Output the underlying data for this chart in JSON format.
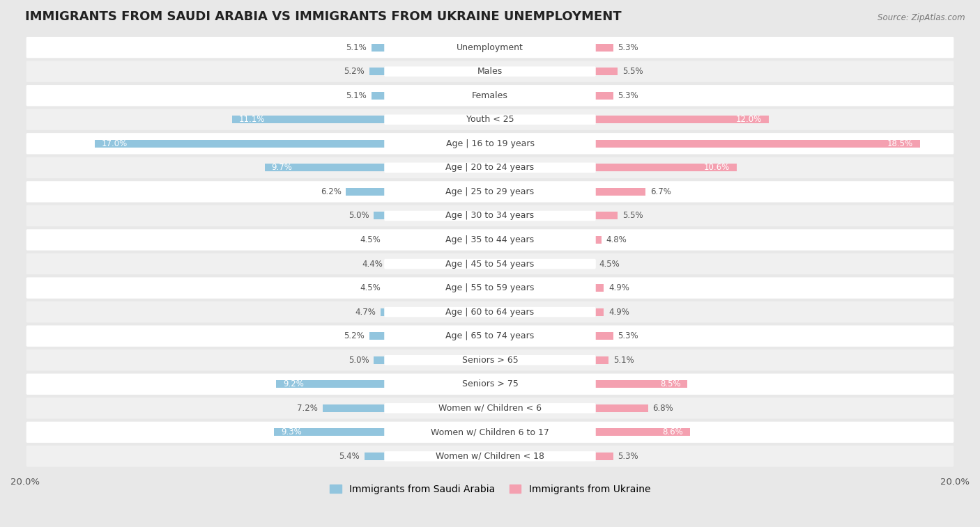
{
  "title": "IMMIGRANTS FROM SAUDI ARABIA VS IMMIGRANTS FROM UKRAINE UNEMPLOYMENT",
  "source": "Source: ZipAtlas.com",
  "categories": [
    "Unemployment",
    "Males",
    "Females",
    "Youth < 25",
    "Age | 16 to 19 years",
    "Age | 20 to 24 years",
    "Age | 25 to 29 years",
    "Age | 30 to 34 years",
    "Age | 35 to 44 years",
    "Age | 45 to 54 years",
    "Age | 55 to 59 years",
    "Age | 60 to 64 years",
    "Age | 65 to 74 years",
    "Seniors > 65",
    "Seniors > 75",
    "Women w/ Children < 6",
    "Women w/ Children 6 to 17",
    "Women w/ Children < 18"
  ],
  "saudi_values": [
    5.1,
    5.2,
    5.1,
    11.1,
    17.0,
    9.7,
    6.2,
    5.0,
    4.5,
    4.4,
    4.5,
    4.7,
    5.2,
    5.0,
    9.2,
    7.2,
    9.3,
    5.4
  ],
  "ukraine_values": [
    5.3,
    5.5,
    5.3,
    12.0,
    18.5,
    10.6,
    6.7,
    5.5,
    4.8,
    4.5,
    4.9,
    4.9,
    5.3,
    5.1,
    8.5,
    6.8,
    8.6,
    5.3
  ],
  "saudi_color": "#92c5de",
  "ukraine_color": "#f4a0b0",
  "saudi_label": "Immigrants from Saudi Arabia",
  "ukraine_label": "Immigrants from Ukraine",
  "xlim": 20.0,
  "background_color": "#e8e8e8",
  "row_color_odd": "#f7f7f7",
  "row_color_even": "#efefef",
  "title_fontsize": 13,
  "label_fontsize": 9,
  "value_fontsize": 8.5,
  "legend_fontsize": 10
}
